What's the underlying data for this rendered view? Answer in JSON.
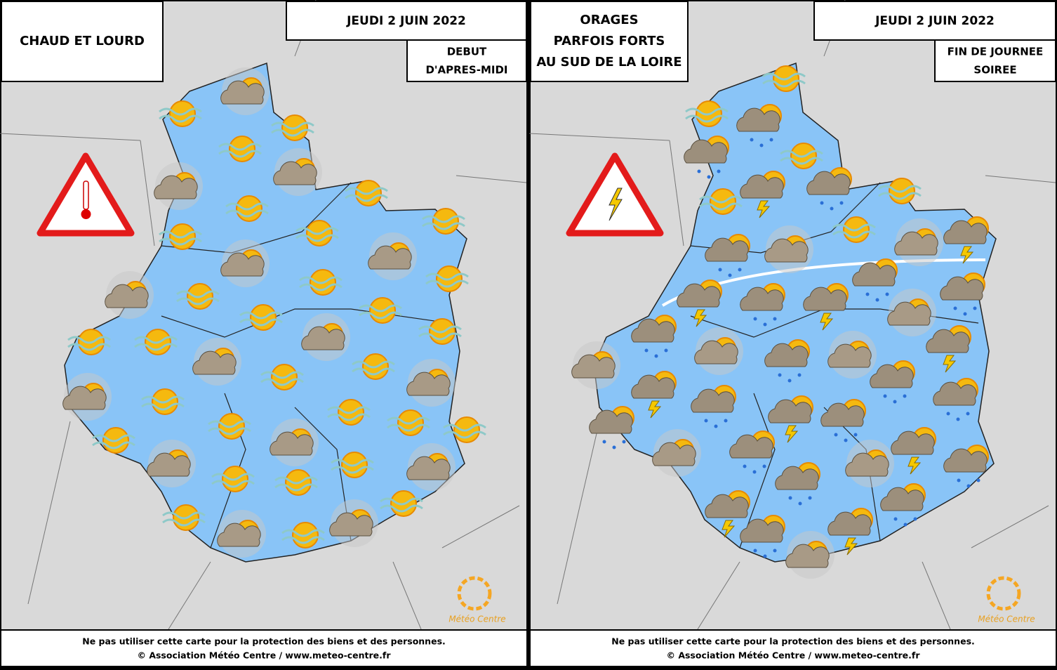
{
  "panels": [
    {
      "title": [
        "CHAUD ET LOURD"
      ],
      "date": "JEUDI 2 JUIN 2022",
      "period": [
        "DEBUT",
        "D'APRES-MIDI"
      ],
      "footer": [
        "Ne pas utiliser cette carte pour la protection des biens et des personnes.",
        "© Association Météo Centre / www.meteo-centre.fr"
      ],
      "logo": "Météo Centre"
    },
    {
      "title": [
        "ORAGES",
        "PARFOIS FORTS",
        "AU SUD DE LA LOIRE"
      ],
      "date": "JEUDI 2 JUIN 2022",
      "period": [
        "FIN DE JOURNEE",
        "SOIREE"
      ],
      "footer": [
        "Ne pas utiliser cette carte pour la protection des biens et des personnes.",
        "© Association Météo Centre / www.meteo-centre.fr"
      ],
      "logo": "Météo Centre"
    }
  ]
}
